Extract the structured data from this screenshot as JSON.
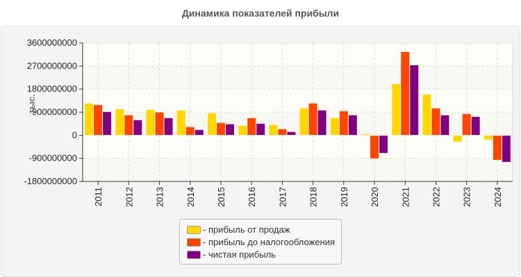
{
  "chart_data": {
    "type": "bar",
    "title": "Динамика показателей прибыли",
    "ylabel": "тыс.",
    "xlabel": "",
    "ylim": [
      -1800000000,
      3600000000
    ],
    "yticks": [
      "3600000000",
      "2700000000",
      "1800000000",
      "900000000",
      "0",
      "-900000000",
      "-1800000000"
    ],
    "ytick_values": [
      3600000000,
      2700000000,
      1800000000,
      900000000,
      0,
      -900000000,
      -1800000000
    ],
    "grid": true,
    "legend_position": "bottom",
    "categories": [
      "2011",
      "2012",
      "2013",
      "2014",
      "2015",
      "2016",
      "2017",
      "2018",
      "2019",
      "2020",
      "2021",
      "2022",
      "2023",
      "2024"
    ],
    "series": [
      {
        "name": "- прибыль от продаж",
        "color": "#ffd700",
        "values": [
          1240000000,
          1020000000,
          990000000,
          970000000,
          860000000,
          370000000,
          400000000,
          1050000000,
          670000000,
          45000000,
          2000000000,
          1590000000,
          -250000000,
          -170000000
        ]
      },
      {
        "name": "- прибыль до налогообложения",
        "color": "#ff4500",
        "values": [
          1180000000,
          780000000,
          890000000,
          320000000,
          480000000,
          670000000,
          240000000,
          1240000000,
          940000000,
          -905000000,
          3250000000,
          1050000000,
          830000000,
          -960000000
        ]
      },
      {
        "name": "- чистая прибыль",
        "color": "#800080",
        "values": [
          910000000,
          590000000,
          670000000,
          210000000,
          430000000,
          450000000,
          130000000,
          970000000,
          780000000,
          -690000000,
          2730000000,
          780000000,
          720000000,
          -1040000000
        ]
      }
    ]
  }
}
